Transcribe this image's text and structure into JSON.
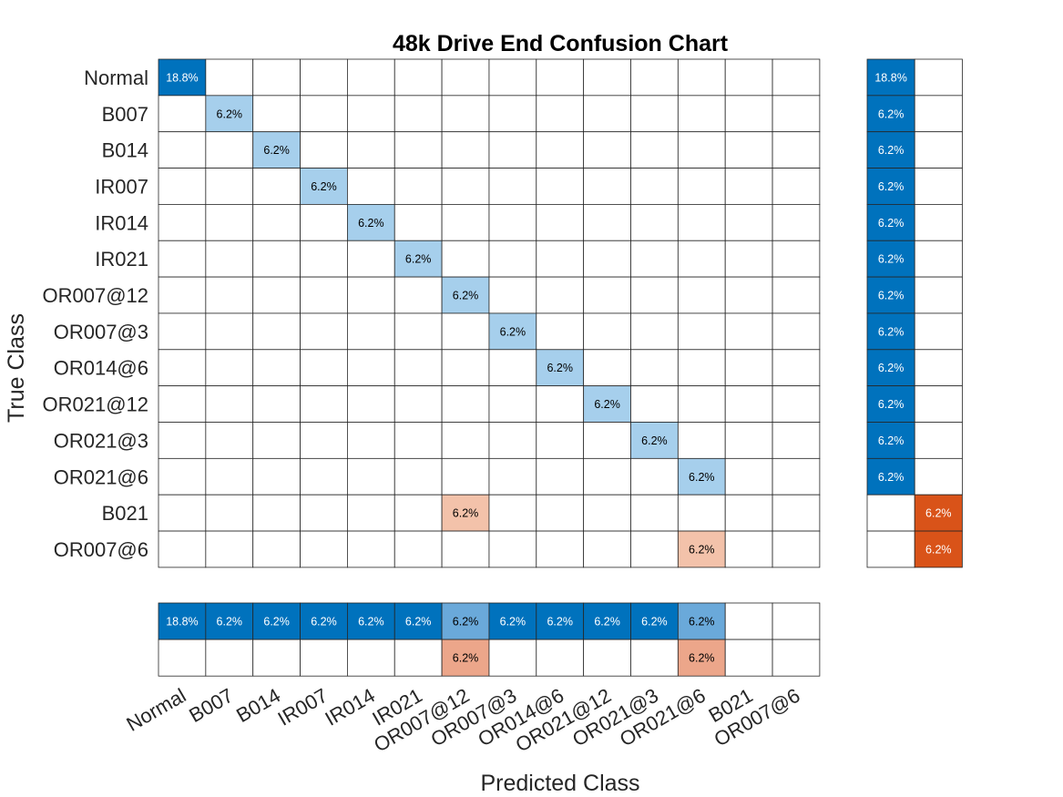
{
  "chart_data": {
    "type": "heatmap",
    "title": "48k Drive End Confusion Chart",
    "xlabel": "Predicted Class",
    "ylabel": "True Class",
    "classes": [
      "Normal",
      "B007",
      "B014",
      "IR007",
      "IR014",
      "IR021",
      "OR007@12",
      "OR007@3",
      "OR014@6",
      "OR021@12",
      "OR021@3",
      "OR021@6",
      "B021",
      "OR007@6"
    ],
    "true_classes": [
      "Normal",
      "B007",
      "B014",
      "IR007",
      "IR014",
      "IR021",
      "OR007@12",
      "OR007@3",
      "OR014@6",
      "OR021@12",
      "OR021@3",
      "OR021@6",
      "B021",
      "OR007@6"
    ],
    "predicted_classes": [
      "Normal",
      "B007",
      "B014",
      "IR007",
      "IR014",
      "IR021",
      "OR007@12",
      "OR007@3",
      "OR014@6",
      "OR021@12",
      "OR021@3",
      "OR021@6",
      "B021",
      "OR007@6"
    ],
    "unit": "%",
    "cells": [
      {
        "true": 0,
        "pred": 0,
        "value": 18.8,
        "label": "18.8%"
      },
      {
        "true": 1,
        "pred": 1,
        "value": 6.2,
        "label": "6.2%"
      },
      {
        "true": 2,
        "pred": 2,
        "value": 6.2,
        "label": "6.2%"
      },
      {
        "true": 3,
        "pred": 3,
        "value": 6.2,
        "label": "6.2%"
      },
      {
        "true": 4,
        "pred": 4,
        "value": 6.2,
        "label": "6.2%"
      },
      {
        "true": 5,
        "pred": 5,
        "value": 6.2,
        "label": "6.2%"
      },
      {
        "true": 6,
        "pred": 6,
        "value": 6.2,
        "label": "6.2%"
      },
      {
        "true": 7,
        "pred": 7,
        "value": 6.2,
        "label": "6.2%"
      },
      {
        "true": 8,
        "pred": 8,
        "value": 6.2,
        "label": "6.2%"
      },
      {
        "true": 9,
        "pred": 9,
        "value": 6.2,
        "label": "6.2%"
      },
      {
        "true": 10,
        "pred": 10,
        "value": 6.2,
        "label": "6.2%"
      },
      {
        "true": 11,
        "pred": 11,
        "value": 6.2,
        "label": "6.2%"
      },
      {
        "true": 12,
        "pred": 6,
        "value": 6.2,
        "label": "6.2%"
      },
      {
        "true": 13,
        "pred": 11,
        "value": 6.2,
        "label": "6.2%"
      }
    ],
    "row_summary": {
      "correct": [
        "18.8%",
        "6.2%",
        "6.2%",
        "6.2%",
        "6.2%",
        "6.2%",
        "6.2%",
        "6.2%",
        "6.2%",
        "6.2%",
        "6.2%",
        "6.2%",
        "",
        ""
      ],
      "incorrect": [
        "",
        "",
        "",
        "",
        "",
        "",
        "",
        "",
        "",
        "",
        "",
        "",
        "6.2%",
        "6.2%"
      ]
    },
    "column_summary": {
      "correct": [
        "18.8%",
        "6.2%",
        "6.2%",
        "6.2%",
        "6.2%",
        "6.2%",
        "6.2%",
        "6.2%",
        "6.2%",
        "6.2%",
        "6.2%",
        "6.2%",
        "",
        ""
      ],
      "incorrect": [
        "",
        "",
        "",
        "",
        "",
        "",
        "6.2%",
        "",
        "",
        "",
        "",
        "6.2%",
        "",
        ""
      ]
    },
    "colors": {
      "correct_dark": "#0072bd",
      "correct_light": "#a6cfec",
      "correct_mid": "#6aa9da",
      "incorrect_dark": "#d95319",
      "incorrect_light": "#f3c2aa",
      "incorrect_mid": "#eca68a",
      "grid": "#262626",
      "text_dark": "#000000",
      "text_light": "#ffffff"
    }
  }
}
